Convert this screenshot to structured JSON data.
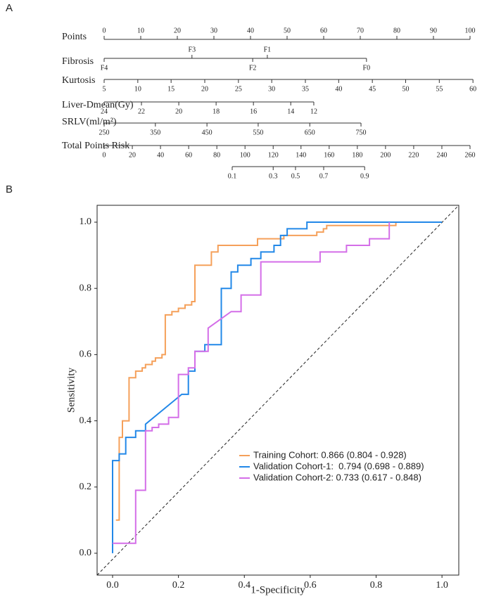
{
  "chart_data": [
    {
      "type": "nomogram",
      "panel_label": "A",
      "rows": [
        {
          "name": "Points",
          "ticks": [
            0,
            10,
            20,
            30,
            40,
            50,
            60,
            70,
            80,
            90,
            100
          ],
          "points": [
            0,
            10,
            20,
            30,
            40,
            50,
            60,
            70,
            80,
            90,
            100
          ]
        },
        {
          "name": "Fibrosis",
          "ticks": [
            "F4",
            "F3",
            "F2",
            "F1",
            "F0"
          ],
          "points": [
            0,
            24,
            40.6,
            44.6,
            71.7
          ]
        },
        {
          "name": "Kurtosis",
          "ticks": [
            5,
            10,
            15,
            20,
            25,
            30,
            35,
            40,
            45,
            50,
            55,
            60
          ],
          "points": [
            0,
            9.2,
            18.3,
            27.5,
            36.7,
            45.8,
            55,
            64.1,
            73.3,
            82.4,
            91.6,
            100.8
          ]
        },
        {
          "name": "Liver-Dmean(Gy)",
          "ticks": [
            24,
            22,
            20,
            18,
            16,
            14,
            12
          ],
          "points": [
            0,
            10.2,
            20.4,
            30.6,
            40.8,
            51,
            57.3
          ]
        },
        {
          "name": "SRLV(ml/m²)",
          "ticks": [
            250,
            350,
            450,
            550,
            650,
            750
          ],
          "points": [
            0,
            14,
            28.1,
            42.1,
            56.2,
            70.2
          ]
        },
        {
          "name": "Total Points Risk",
          "ticks": [
            0,
            20,
            40,
            60,
            80,
            100,
            120,
            140,
            160,
            180,
            200,
            220,
            240,
            260
          ],
          "points": [
            0,
            7.7,
            15.4,
            23.1,
            30.8,
            38.5,
            46.2,
            53.8,
            61.5,
            69.2,
            76.9,
            84.6,
            92.3,
            100
          ]
        },
        {
          "ticks": [
            0.1,
            0.3,
            0.5,
            0.7,
            0.9
          ],
          "points": [
            35,
            46.2,
            52.3,
            60,
            71.2
          ]
        }
      ]
    },
    {
      "type": "line",
      "panel_label": "B",
      "x_label": "1-Specificity",
      "y_label": "Sensitivity",
      "xlim": [
        -0.047,
        1.051
      ],
      "ylim": [
        -0.066,
        1.051
      ],
      "xticks": [
        {
          "value": 0,
          "label": "0.0"
        },
        0.2,
        0.4,
        0.6,
        0.8,
        {
          "value": 1,
          "label": "1.0"
        }
      ],
      "yticks": [
        {
          "value": 0,
          "label": "0.0"
        },
        0.2,
        0.4,
        0.6,
        0.8,
        {
          "value": 1,
          "label": "1.0"
        }
      ],
      "series": [
        {
          "name": "Training Cohort: 0.866 (0.804 - 0.928)",
          "color": "#f5a05a",
          "x": [
            0.01,
            0.02,
            0.02,
            0.03,
            0.03,
            0.05,
            0.05,
            0.07,
            0.07,
            0.09,
            0.09,
            0.1,
            0.1,
            0.12,
            0.12,
            0.13,
            0.13,
            0.15,
            0.15,
            0.16,
            0.16,
            0.18,
            0.18,
            0.2,
            0.2,
            0.22,
            0.22,
            0.24,
            0.24,
            0.25,
            0.25,
            0.3,
            0.3,
            0.32,
            0.32,
            0.44,
            0.44,
            0.52,
            0.52,
            0.62,
            0.62,
            0.64,
            0.64,
            0.65,
            0.65,
            0.86,
            0.86
          ],
          "values": [
            0.1,
            0.1,
            0.35,
            0.35,
            0.4,
            0.4,
            0.53,
            0.53,
            0.55,
            0.55,
            0.56,
            0.56,
            0.57,
            0.57,
            0.58,
            0.58,
            0.59,
            0.59,
            0.6,
            0.6,
            0.72,
            0.72,
            0.73,
            0.73,
            0.74,
            0.74,
            0.75,
            0.75,
            0.76,
            0.76,
            0.87,
            0.87,
            0.91,
            0.91,
            0.93,
            0.93,
            0.95,
            0.95,
            0.96,
            0.96,
            0.97,
            0.97,
            0.98,
            0.98,
            0.99,
            0.99,
            1.0
          ]
        },
        {
          "name": "Validation Cohort-1:  0.794 (0.698 - 0.889)",
          "color": "#2288e8",
          "x": [
            0,
            0,
            0.02,
            0.02,
            0.04,
            0.04,
            0.07,
            0.07,
            0.1,
            0.1,
            0.21,
            0.23,
            0.23,
            0.25,
            0.25,
            0.28,
            0.28,
            0.33,
            0.33,
            0.36,
            0.36,
            0.38,
            0.38,
            0.42,
            0.42,
            0.45,
            0.45,
            0.49,
            0.49,
            0.51,
            0.51,
            0.53,
            0.53,
            0.59,
            0.59,
            1.0
          ],
          "values": [
            0,
            0.28,
            0.28,
            0.3,
            0.3,
            0.35,
            0.35,
            0.37,
            0.37,
            0.39,
            0.48,
            0.48,
            0.55,
            0.55,
            0.61,
            0.61,
            0.63,
            0.63,
            0.8,
            0.8,
            0.85,
            0.85,
            0.87,
            0.87,
            0.89,
            0.89,
            0.91,
            0.91,
            0.93,
            0.93,
            0.96,
            0.96,
            0.98,
            0.98,
            1.0,
            1.0
          ]
        },
        {
          "name": "Validation Cohort-2: 0.733 (0.617 - 0.848)",
          "color": "#d46ee8",
          "x": [
            0,
            0.07,
            0.07,
            0.1,
            0.1,
            0.12,
            0.12,
            0.14,
            0.14,
            0.17,
            0.17,
            0.2,
            0.2,
            0.23,
            0.23,
            0.25,
            0.25,
            0.29,
            0.29,
            0.36,
            0.39,
            0.39,
            0.45,
            0.45,
            0.63,
            0.63,
            0.71,
            0.71,
            0.78,
            0.78,
            0.84,
            0.84
          ],
          "values": [
            0.03,
            0.03,
            0.19,
            0.19,
            0.37,
            0.37,
            0.38,
            0.38,
            0.39,
            0.39,
            0.41,
            0.41,
            0.54,
            0.54,
            0.56,
            0.56,
            0.61,
            0.61,
            0.68,
            0.73,
            0.73,
            0.78,
            0.78,
            0.88,
            0.88,
            0.91,
            0.91,
            0.93,
            0.93,
            0.95,
            0.95,
            1.0
          ]
        }
      ]
    }
  ]
}
